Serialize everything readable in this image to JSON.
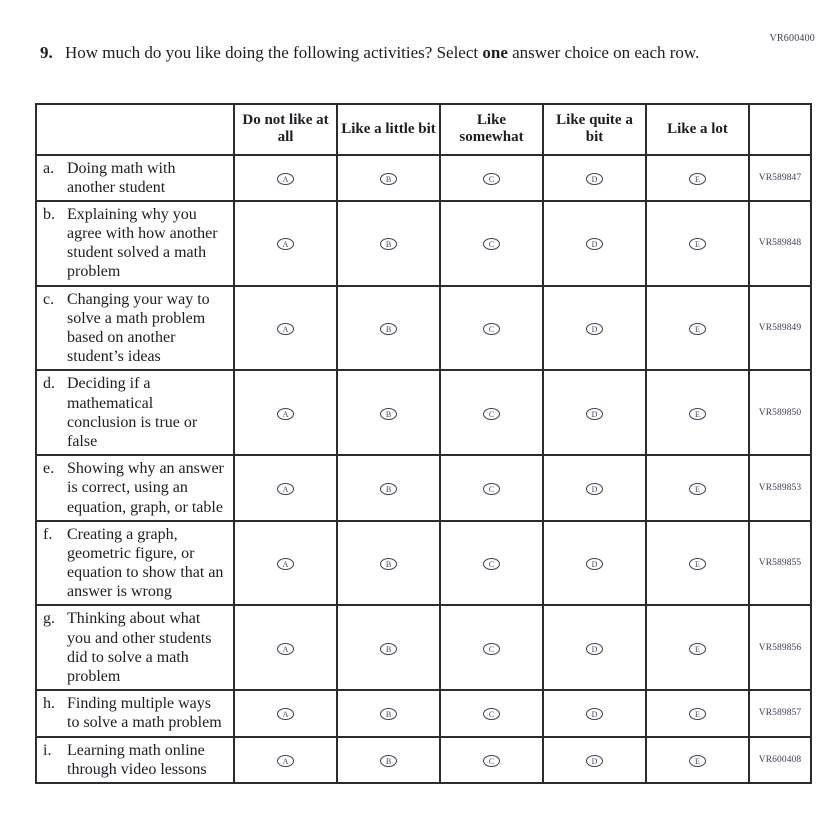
{
  "colors": {
    "ink": "#1d1d24",
    "line": "#2b2b31",
    "code_ink": "#3c3f55",
    "paper": "#ffffff"
  },
  "page": {
    "form_code": "VR600400"
  },
  "question": {
    "number": "9.",
    "text_start": "How much do you like doing the following activities? Select ",
    "bold_word": "one",
    "text_end": " answer choice on each row."
  },
  "table": {
    "column_headers": [
      "Do not like at all",
      "Like a little bit",
      "Like somewhat",
      "Like quite a bit",
      "Like a lot"
    ],
    "choices": [
      "A",
      "B",
      "C",
      "D",
      "E"
    ],
    "rows": [
      {
        "letter": "a.",
        "label": "Doing math with another student",
        "code": "VR589847"
      },
      {
        "letter": "b.",
        "label": "Explaining why you agree with how another student solved a math problem",
        "code": "VR589848"
      },
      {
        "letter": "c.",
        "label": "Changing your way to solve a math problem based on another student’s ideas",
        "code": "VR589849"
      },
      {
        "letter": "d.",
        "label": "Deciding if a mathematical conclusion is true or false",
        "code": "VR589850"
      },
      {
        "letter": "e.",
        "label": "Showing why an answer is correct, using an equation, graph, or table",
        "code": "VR589853"
      },
      {
        "letter": "f.",
        "label": "Creating a graph, geometric figure, or equation to show that an answer is wrong",
        "code": "VR589855"
      },
      {
        "letter": "g.",
        "label": "Thinking about what you and other students did to solve a math problem",
        "code": "VR589856"
      },
      {
        "letter": "h.",
        "label": "Finding multiple ways to solve a math problem",
        "code": "VR589857"
      },
      {
        "letter": "i.",
        "label": "Learning math online through video lessons",
        "code": "VR600408"
      }
    ]
  }
}
